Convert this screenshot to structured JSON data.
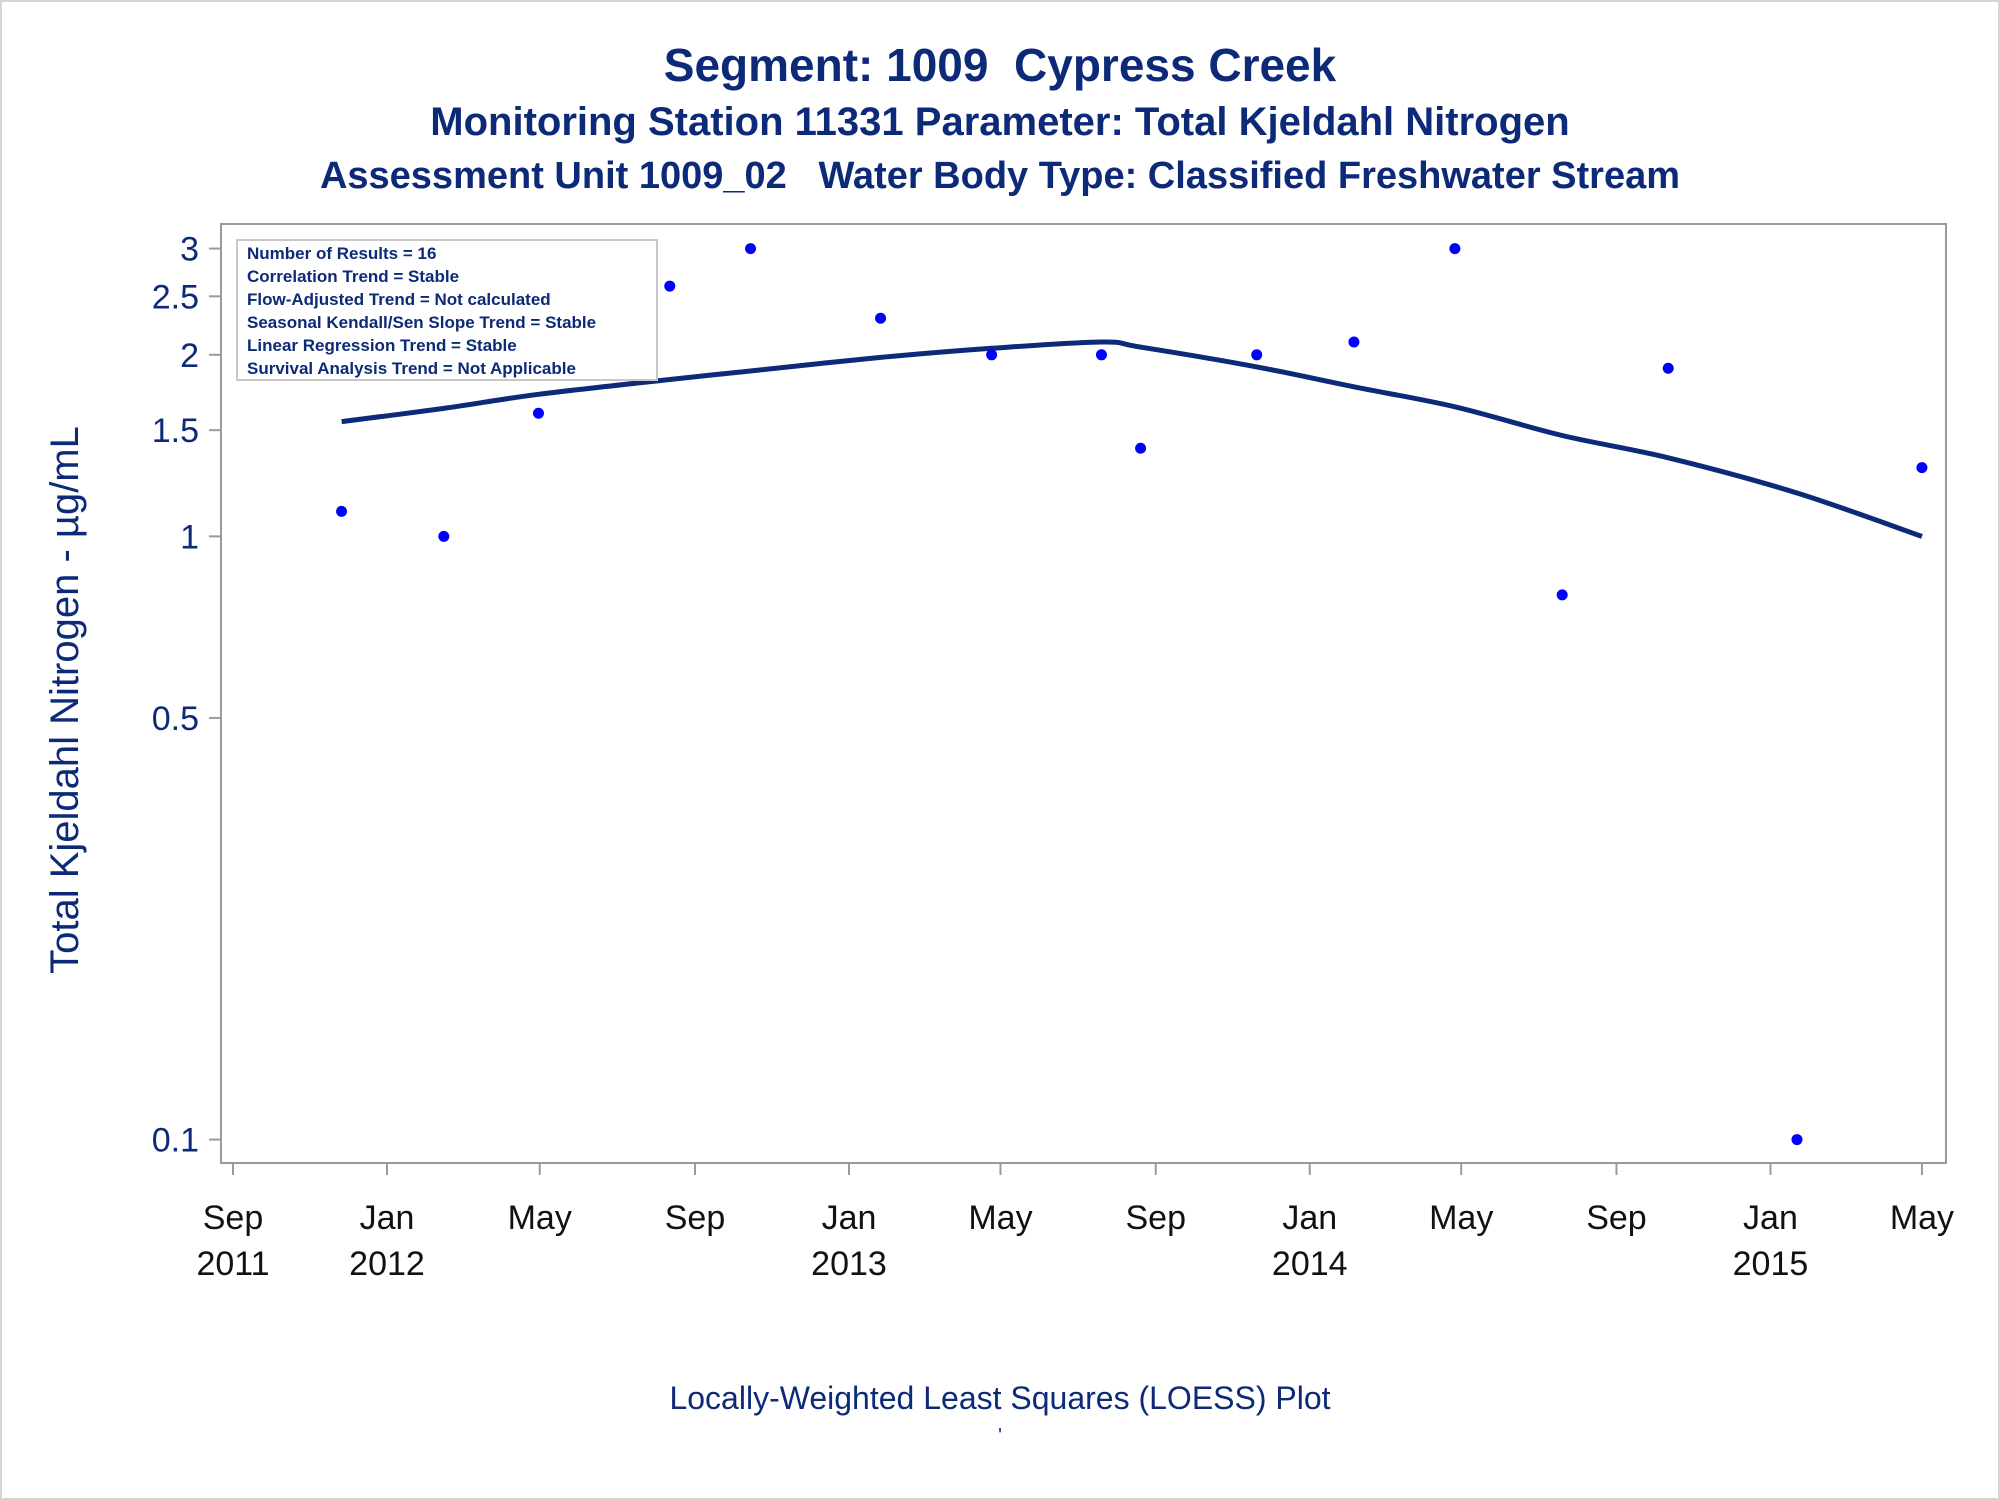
{
  "titles": {
    "line1": "Segment: 1009  Cypress Creek",
    "line2": "Monitoring Station 11331 Parameter: Total Kjeldahl Nitrogen",
    "line3": "Assessment Unit 1009_02   Water Body Type: Classified Freshwater Stream"
  },
  "footnote": "Locally-Weighted Least Squares (LOESS) Plot",
  "footmark": "'",
  "inset": [
    "Number of Results = 16",
    "Correlation Trend = Stable",
    "Flow-Adjusted Trend = Not calculated",
    "Seasonal Kendall/Sen Slope Trend = Stable",
    "Linear Regression Trend = Stable",
    "Survival Analysis Trend = Not Applicable"
  ],
  "colors": {
    "text": "#0d2a78",
    "points": "#0000ff",
    "line": "#0d2a78",
    "axis": "#9a9a9a"
  },
  "chart_data": {
    "type": "scatter",
    "ylabel": "Total Kjeldahl Nitrogen -  µg/mL",
    "xlabel": "",
    "yscale": "log",
    "ylim": [
      0.095,
      3.1
    ],
    "xlim": [
      "2011-09-01",
      "2015-05-05"
    ],
    "yticks": [
      {
        "value": 0.1,
        "label": "0.1"
      },
      {
        "value": 0.5,
        "label": "0.5"
      },
      {
        "value": 1,
        "label": "1"
      },
      {
        "value": 1.5,
        "label": "1.5"
      },
      {
        "value": 2,
        "label": "2"
      },
      {
        "value": 2.5,
        "label": "2.5"
      },
      {
        "value": 3,
        "label": "3"
      }
    ],
    "xticks": [
      {
        "date": "2011-09-01",
        "label1": "Sep",
        "label2": "2011"
      },
      {
        "date": "2012-01-01",
        "label1": "Jan",
        "label2": "2012"
      },
      {
        "date": "2012-05-01",
        "label1": "May",
        "label2": ""
      },
      {
        "date": "2012-09-01",
        "label1": "Sep",
        "label2": ""
      },
      {
        "date": "2013-01-01",
        "label1": "Jan",
        "label2": "2013"
      },
      {
        "date": "2013-05-01",
        "label1": "May",
        "label2": ""
      },
      {
        "date": "2013-09-01",
        "label1": "Sep",
        "label2": ""
      },
      {
        "date": "2014-01-01",
        "label1": "Jan",
        "label2": "2014"
      },
      {
        "date": "2014-05-01",
        "label1": "May",
        "label2": ""
      },
      {
        "date": "2014-09-01",
        "label1": "Sep",
        "label2": ""
      },
      {
        "date": "2015-01-01",
        "label1": "Jan",
        "label2": "2015"
      },
      {
        "date": "2015-05-01",
        "label1": "May",
        "label2": ""
      }
    ],
    "points": [
      {
        "x": "2011-11-26",
        "y": 1.1
      },
      {
        "x": "2012-02-15",
        "y": 1.0
      },
      {
        "x": "2012-04-30",
        "y": 1.6
      },
      {
        "x": "2012-08-12",
        "y": 2.6
      },
      {
        "x": "2012-10-15",
        "y": 3.0
      },
      {
        "x": "2013-01-26",
        "y": 2.3
      },
      {
        "x": "2013-04-24",
        "y": 2.0
      },
      {
        "x": "2013-07-20",
        "y": 2.0
      },
      {
        "x": "2013-08-20",
        "y": 1.4
      },
      {
        "x": "2013-11-20",
        "y": 2.0
      },
      {
        "x": "2014-02-05",
        "y": 2.1
      },
      {
        "x": "2014-04-26",
        "y": 3.0
      },
      {
        "x": "2014-07-20",
        "y": 0.8
      },
      {
        "x": "2014-10-12",
        "y": 1.9
      },
      {
        "x": "2015-01-22",
        "y": 0.1
      },
      {
        "x": "2015-05-01",
        "y": 1.3
      }
    ],
    "loess": [
      {
        "x": "2011-11-26",
        "y": 1.55
      },
      {
        "x": "2012-02-15",
        "y": 1.63
      },
      {
        "x": "2012-04-30",
        "y": 1.72
      },
      {
        "x": "2012-08-12",
        "y": 1.82
      },
      {
        "x": "2012-10-15",
        "y": 1.88
      },
      {
        "x": "2013-01-26",
        "y": 1.98
      },
      {
        "x": "2013-04-24",
        "y": 2.05
      },
      {
        "x": "2013-07-20",
        "y": 2.1
      },
      {
        "x": "2013-08-20",
        "y": 2.06
      },
      {
        "x": "2013-11-20",
        "y": 1.91
      },
      {
        "x": "2014-02-05",
        "y": 1.77
      },
      {
        "x": "2014-04-26",
        "y": 1.64
      },
      {
        "x": "2014-07-20",
        "y": 1.47
      },
      {
        "x": "2014-10-12",
        "y": 1.35
      },
      {
        "x": "2015-01-22",
        "y": 1.18
      },
      {
        "x": "2015-05-01",
        "y": 1.0
      }
    ]
  }
}
